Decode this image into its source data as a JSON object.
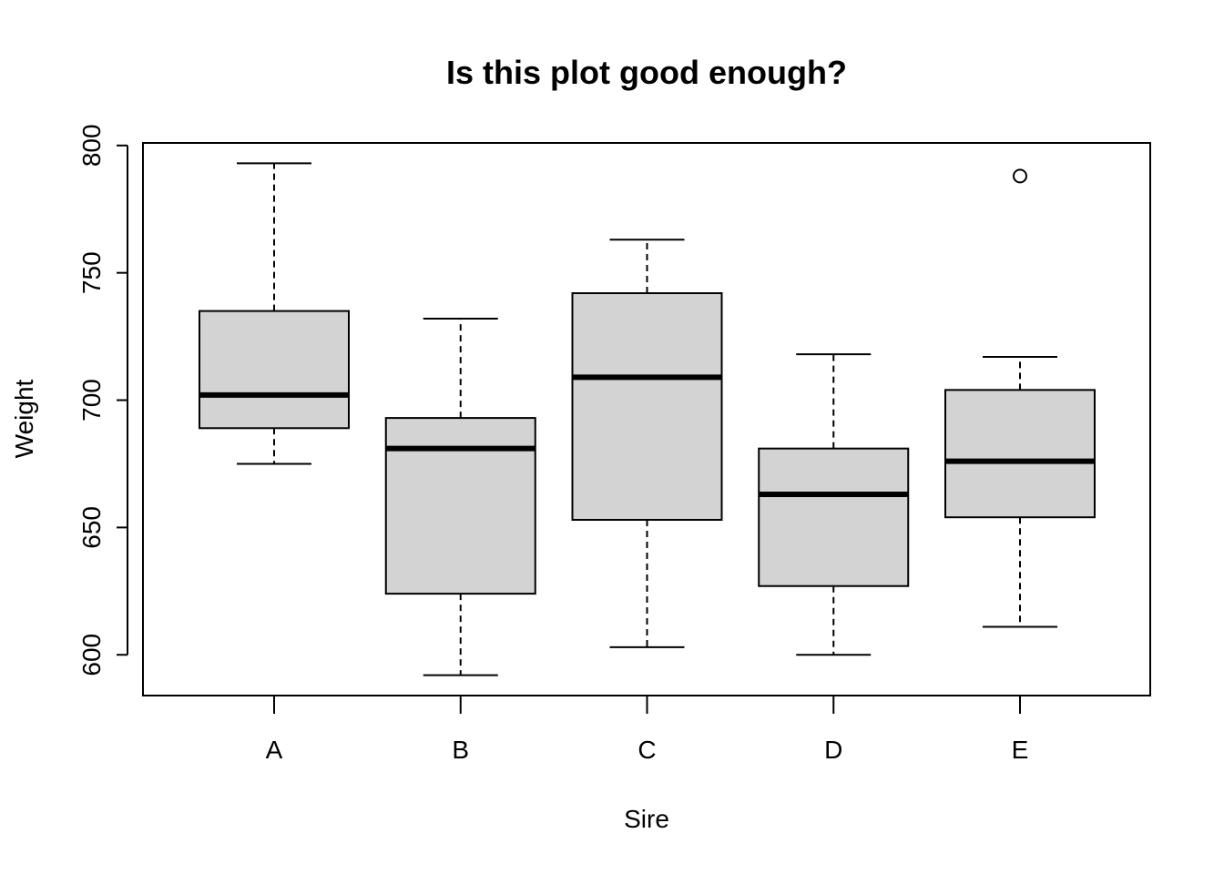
{
  "chart_data": {
    "type": "boxplot",
    "title": "Is this plot good enough?",
    "xlabel": "Sire",
    "ylabel": "Weight",
    "ylim": [
      584,
      801
    ],
    "y_ticks": [
      600,
      650,
      700,
      750,
      800
    ],
    "categories": [
      "A",
      "B",
      "C",
      "D",
      "E"
    ],
    "box_fill": "#d3d3d3",
    "boxes": [
      {
        "category": "A",
        "whisker_low": 675,
        "q1": 689,
        "median": 702,
        "q3": 735,
        "whisker_high": 793,
        "outliers": []
      },
      {
        "category": "B",
        "whisker_low": 592,
        "q1": 624,
        "median": 681,
        "q3": 693,
        "whisker_high": 732,
        "outliers": []
      },
      {
        "category": "C",
        "whisker_low": 603,
        "q1": 653,
        "median": 709,
        "q3": 742,
        "whisker_high": 763,
        "outliers": []
      },
      {
        "category": "D",
        "whisker_low": 600,
        "q1": 627,
        "median": 663,
        "q3": 681,
        "whisker_high": 718,
        "outliers": []
      },
      {
        "category": "E",
        "whisker_low": 611,
        "q1": 654,
        "median": 676,
        "q3": 704,
        "whisker_high": 717,
        "outliers": [
          788
        ]
      }
    ]
  }
}
